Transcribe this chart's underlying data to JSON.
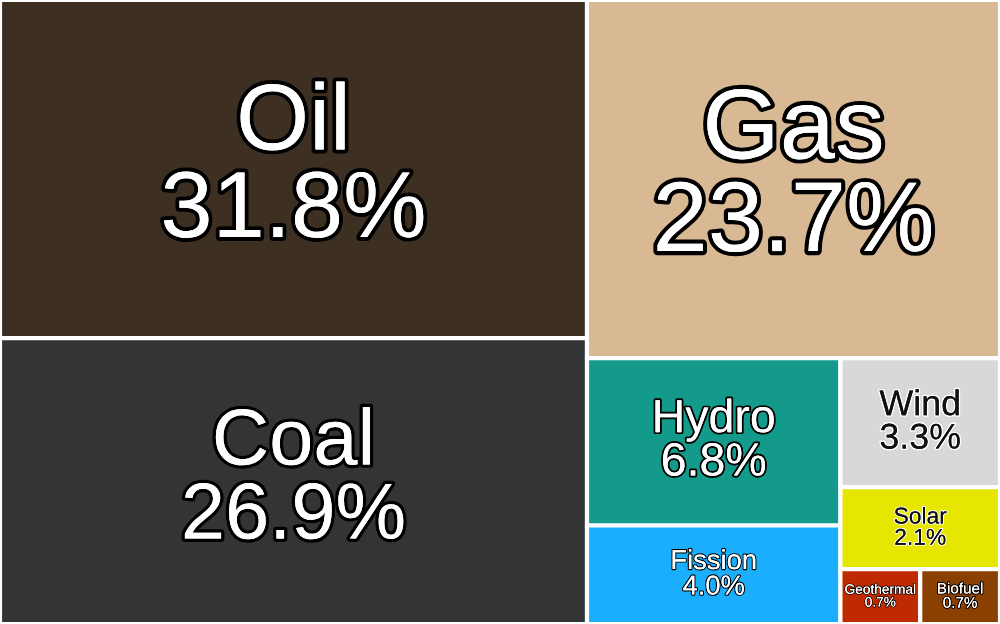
{
  "chart_data": {
    "type": "other",
    "categories": [
      "Oil",
      "Coal",
      "Gas",
      "Hydro",
      "Fission",
      "Wind",
      "Solar",
      "Geothermal",
      "Biofuel"
    ],
    "values": [
      31.8,
      26.9,
      23.7,
      6.8,
      4.0,
      3.3,
      2.1,
      0.7,
      0.7
    ],
    "value_labels": [
      "31.8%",
      "26.9%",
      "23.7%",
      "6.8%",
      "4.0%",
      "3.3%",
      "2.1%",
      "0.7%",
      "0.7%"
    ],
    "colors": [
      "#3d3022",
      "#333436",
      "#d9b894",
      "#149a8a",
      "#1aaefc",
      "#d8d8d8",
      "#e6e600",
      "#c02a00",
      "#8a4000"
    ]
  }
}
